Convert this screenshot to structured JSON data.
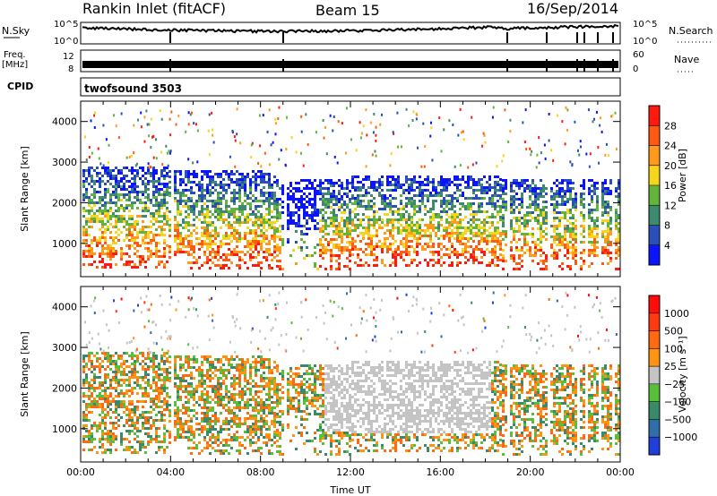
{
  "header": {
    "station": "Rankin Inlet (fitACF)",
    "beam": "Beam 15",
    "date": "16/Sep/2014"
  },
  "strips": {
    "nsky_label": "N.Sky",
    "nsky_ticks": [
      "10^5",
      "10^0"
    ],
    "nsearch_label": "N.Search",
    "nsearch_ticks": [
      "10^5",
      "10^0"
    ],
    "freq_label_1": "Freq.",
    "freq_label_2": "[MHz]",
    "freq_ticks": [
      "12",
      "8"
    ],
    "nave_label": "Nave",
    "nave_ticks": [
      "60",
      "0"
    ],
    "cpid_label": "CPID",
    "cpid_value": "twofsound 3503"
  },
  "chart_data": [
    {
      "type": "heatmap",
      "name": "power",
      "ylabel": "Slant Range [km]",
      "xlabel": "",
      "ylim": [
        180,
        4500
      ],
      "yticks": [
        "1000",
        "2000",
        "3000",
        "4000"
      ],
      "colorbar": {
        "label": "Power [dB]",
        "ticks": [
          "4",
          "8",
          "12",
          "16",
          "20",
          "24",
          "28"
        ],
        "colors": [
          "#0a14ff",
          "#2b4fb8",
          "#3d8a70",
          "#62b53a",
          "#f5d61c",
          "#ff9a1c",
          "#ff5a14",
          "#ff1a10"
        ]
      }
    },
    {
      "type": "heatmap",
      "name": "velocity",
      "ylabel": "Slant Range [km]",
      "xlabel": "Time UT",
      "ylim": [
        180,
        4500
      ],
      "yticks": [
        "1000",
        "2000",
        "3000",
        "4000"
      ],
      "xticks": [
        "00:00",
        "04:00",
        "08:00",
        "12:00",
        "16:00",
        "20:00",
        "00:00"
      ],
      "colorbar": {
        "label": "Velocity [m s⁻¹]",
        "ticks": [
          "1000",
          "500",
          "100",
          "25",
          "−25",
          "−100",
          "−500",
          "−1000"
        ],
        "colors": [
          "#1f3fd8",
          "#2f6ea8",
          "#3a8a6a",
          "#58c038",
          "#c4c4c4",
          "#ff9414",
          "#ff6a10",
          "#ff3a10",
          "#ff0c0c"
        ]
      }
    }
  ]
}
